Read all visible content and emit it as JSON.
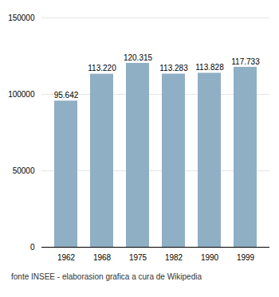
{
  "chart_data": {
    "type": "bar",
    "caption": "fonte INSEE - elaborasion grafica a cura de Wikipedia",
    "categories": [
      "1962",
      "1968",
      "1975",
      "1982",
      "1990",
      "1999"
    ],
    "values": [
      95642,
      113220,
      120315,
      113283,
      113828,
      117733
    ],
    "value_labels": [
      "95.642",
      "113.220",
      "120.315",
      "113.283",
      "113.828",
      "117.733"
    ],
    "data_labels": true,
    "color": "#8FAFC4",
    "ylim": [
      0,
      150000
    ],
    "yticks": [
      0,
      50000,
      100000,
      150000
    ],
    "grid": true
  }
}
